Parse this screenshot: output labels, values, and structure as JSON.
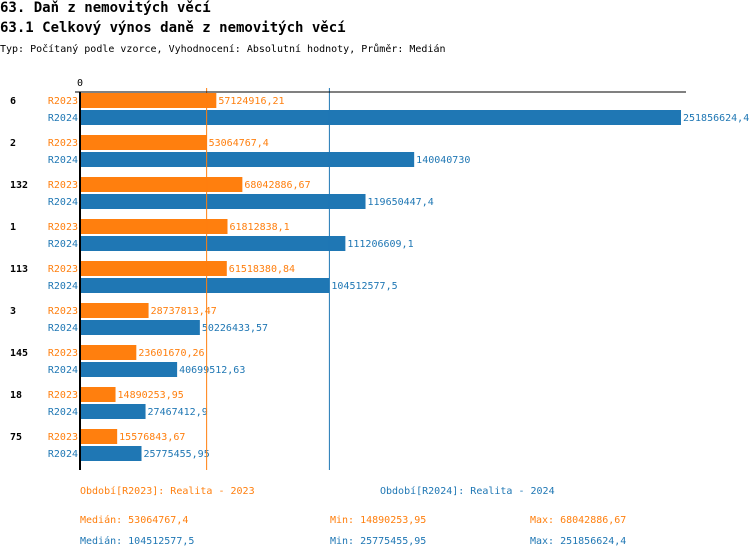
{
  "title": "63. Daň z nemovitých věcí",
  "subtitle": "63.1 Celkový výnos daně z nemovitých věcí",
  "description": "Typ: Počítaný podle vzorce, Vyhodnocení: Absolutní hodnoty, Průměr: Medián",
  "colors": {
    "R2023": "#ff7f0e",
    "R2024": "#1f77b4"
  },
  "chart_data": {
    "type": "bar",
    "orientation": "horizontal",
    "x_tick_labels": [
      "0"
    ],
    "xlim": [
      0,
      251856624.4
    ],
    "categories": [
      "6",
      "2",
      "132",
      "1",
      "113",
      "3",
      "145",
      "18",
      "75"
    ],
    "series": [
      {
        "name": "R2023",
        "values": [
          57124916.21,
          53064767.4,
          68042886.67,
          61812838.1,
          61518380.84,
          28737813.47,
          23601670.26,
          14890253.95,
          15576843.67
        ],
        "labels": [
          "57124916,21",
          "53064767,4",
          "68042886,67",
          "61812838,1",
          "61518380,84",
          "28737813,47",
          "23601670,26",
          "14890253,95",
          "15576843,67"
        ]
      },
      {
        "name": "R2024",
        "values": [
          251856624.4,
          140040730,
          119650447.4,
          111206609.1,
          104512577.5,
          50226433.57,
          40699512.63,
          27467412.9,
          25775455.95
        ],
        "labels": [
          "251856624,4",
          "140040730",
          "119650447,4",
          "111206609,1",
          "104512577,5",
          "50226433,57",
          "40699512,63",
          "27467412,9",
          "25775455,95"
        ]
      }
    ],
    "median_lines": {
      "R2023": 53064767.4,
      "R2024": 104512577.5
    }
  },
  "legend": {
    "r2023_period": "Období[R2023]: Realita - 2023",
    "r2024_period": "Období[R2024]: Realita - 2024",
    "r2023_median": "Medián: 53064767,4",
    "r2023_min": "Min: 14890253,95",
    "r2023_max": "Max: 68042886,67",
    "r2024_median": "Medián: 104512577,5",
    "r2024_min": "Min: 25775455,95",
    "r2024_max": "Max: 251856624,4"
  }
}
